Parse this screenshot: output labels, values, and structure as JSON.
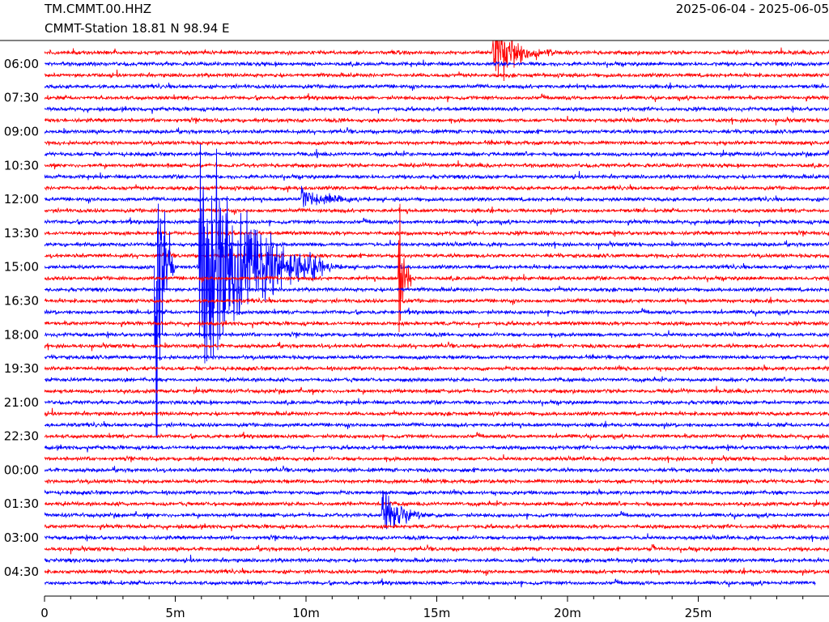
{
  "header": {
    "station_code": "TM.CMMT.00.HHZ",
    "station_desc": "CMMT-Station  18.81 N 98.94 E",
    "date_range": "2025-06-04 - 2025-06-05"
  },
  "chart_data": {
    "type": "line",
    "title": "TM.CMMT.00.HHZ",
    "subtitle": "CMMT-Station  18.81 N 98.94 E",
    "xlabel": "",
    "ylabel": "",
    "x_unit": "minutes",
    "xlim": [
      0,
      30
    ],
    "x_ticks": [
      0,
      5,
      10,
      15,
      20,
      25
    ],
    "x_tick_labels": [
      "0",
      "5m",
      "10m",
      "15m",
      "20m",
      "25m"
    ],
    "x_minor_step": 1,
    "trace_interval_minutes": 30,
    "n_traces": 48,
    "colors": [
      "#ff0000",
      "#0000ff"
    ],
    "y_tick_labels": [
      "06:00",
      "07:30",
      "09:00",
      "10:30",
      "12:00",
      "13:30",
      "15:00",
      "16:30",
      "18:00",
      "19:30",
      "21:00",
      "22:30",
      "00:00",
      "01:30",
      "03:00",
      "04:30"
    ],
    "y_tick_first_trace": 1,
    "y_tick_every": 3,
    "last_trace_end_minute": 29.5,
    "grid": false,
    "legend": "none",
    "events": [
      {
        "trace": 0,
        "onset_min": 17.1,
        "duration_min": 3.0,
        "amplitude": 50
      },
      {
        "trace": 19,
        "onset_min": 4.2,
        "duration_min": 0.8,
        "amplitude": 330
      },
      {
        "trace": 19,
        "onset_min": 5.9,
        "duration_min": 4.8,
        "amplitude": 270
      },
      {
        "trace": 19,
        "onset_min": 9.7,
        "duration_min": 4.0,
        "amplitude": 14
      },
      {
        "trace": 13,
        "onset_min": 9.8,
        "duration_min": 3.6,
        "amplitude": 20
      },
      {
        "trace": 20,
        "onset_min": 13.5,
        "duration_min": 0.5,
        "amplitude": 215
      },
      {
        "trace": 41,
        "onset_min": 12.9,
        "duration_min": 2.6,
        "amplitude": 35
      },
      {
        "trace": 44,
        "onset_min": 23.2,
        "duration_min": 0.4,
        "amplitude": 18
      },
      {
        "trace": 9,
        "onset_min": 10.4,
        "duration_min": 0.3,
        "amplitude": 12
      },
      {
        "trace": 12,
        "onset_min": 9.2,
        "duration_min": 0.3,
        "amplitude": 12
      },
      {
        "trace": 6,
        "onset_min": 19.6,
        "duration_min": 0.3,
        "amplitude": 10
      }
    ]
  }
}
